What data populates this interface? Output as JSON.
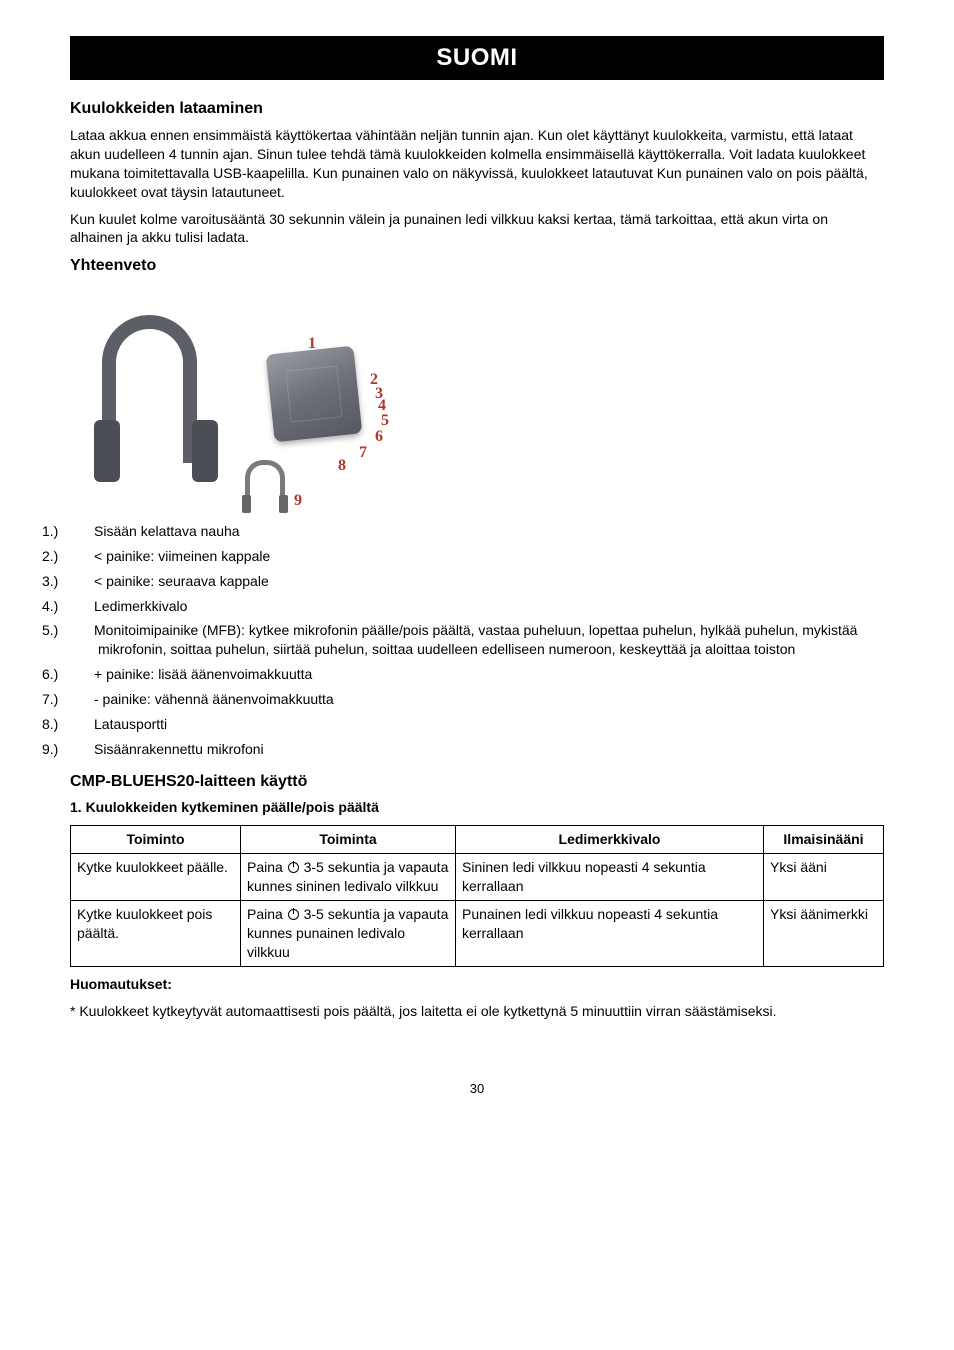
{
  "banner": "SUOMI",
  "sections": {
    "charging": {
      "title": "Kuulokkeiden lataaminen",
      "p1": "Lataa akkua ennen ensimmäistä käyttökertaa vähintään neljän tunnin ajan. Kun olet käyttänyt kuulokkeita, varmistu, että lataat akun uudelleen 4 tunnin ajan. Sinun tulee tehdä tämä kuulokkeiden kolmella ensimmäisellä käyttökerralla. Voit ladata kuulokkeet mukana toimitettavalla USB-kaapelilla. Kun punainen valo on näkyvissä, kuulokkeet latautuvat Kun punainen valo on pois päältä, kuulokkeet ovat täysin latautuneet.",
      "p2": "Kun kuulet kolme varoitusääntä 30 sekunnin välein ja punainen ledi vilkkuu kaksi kertaa, tämä tarkoittaa, että akun virta on alhainen ja akku tulisi ladata."
    },
    "overview": {
      "title": "Yhteenveto",
      "items": [
        {
          "n": "1.)",
          "t": "Sisään kelattava nauha"
        },
        {
          "n": "2.)",
          "t": "< painike: viimeinen kappale"
        },
        {
          "n": "3.)",
          "t": "< painike: seuraava kappale"
        },
        {
          "n": "4.)",
          "t": "Ledimerkkivalo"
        },
        {
          "n": "5.)",
          "t": "Monitoimipainike (MFB): kytkee mikrofonin päälle/pois päältä, vastaa puheluun, lopettaa puhelun, hylkää puhelun, mykistää mikrofonin, soittaa puhelun, siirtää puhelun, soittaa uudelleen edelliseen numeroon, keskeyttää ja aloittaa toiston"
        },
        {
          "n": "6.)",
          "t": "+ painike: lisää äänenvoimakkuutta"
        },
        {
          "n": "7.)",
          "t": "- painike: vähennä äänenvoimakkuutta"
        },
        {
          "n": "8.)",
          "t": "Latausportti"
        },
        {
          "n": "9.)",
          "t": "Sisäänrakennettu mikrofoni"
        }
      ]
    },
    "usage": {
      "title": "CMP-BLUEHS20-laitteen käyttö",
      "sub1": "1. Kuulokkeiden kytkeminen päälle/pois päältä",
      "columns": [
        "Toiminto",
        "Toiminta",
        "Ledimerkkivalo",
        "Ilmaisinääni"
      ],
      "rows": [
        {
          "c1": "Kytke kuulokkeet päälle.",
          "c2a": "Paina ",
          "c2b": " 3-5 sekuntia ja vapauta kunnes sininen ledivalo vilkkuu",
          "c3": "Sininen ledi vilkkuu nopeasti 4 sekuntia kerrallaan",
          "c4": "Yksi ääni"
        },
        {
          "c1": "Kytke kuulokkeet pois päältä.",
          "c2a": "Paina ",
          "c2b": " 3-5 sekuntia ja vapauta kunnes punainen ledivalo vilkkuu",
          "c3": "Punainen ledi vilkkuu nopeasti 4 sekuntia kerrallaan",
          "c4": "Yksi äänimerkki"
        }
      ]
    },
    "notes": {
      "title": "Huomautukset:",
      "n1": "* Kuulokkeet kytkeytyvät automaattisesti pois päältä, jos laitetta ei ole kytkettynä 5 minuuttiin virran säästämiseksi."
    }
  },
  "diagram_labels": {
    "l1": "1",
    "l2": "2",
    "l3": "3",
    "l4": "4",
    "l5": "5",
    "l6": "6",
    "l7": "7",
    "l8": "8",
    "l9": "9"
  },
  "page_number": "30",
  "style": {
    "background_color": "#ffffff",
    "text_color": "#000000",
    "banner_bg": "#000000",
    "banner_fg": "#ffffff",
    "accent_red": "#b3342a",
    "body_fontsize": 14,
    "banner_fontsize": 24,
    "h2_fontsize": 16
  }
}
